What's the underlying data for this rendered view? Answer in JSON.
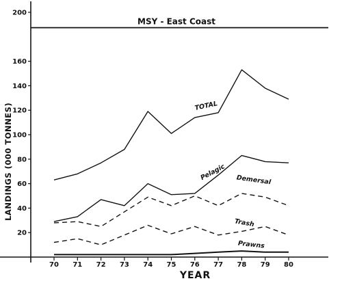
{
  "chart_data": {
    "type": "line",
    "title": "",
    "xlabel": "YEAR",
    "ylabel": "LANDINGS (000 TONNES)",
    "x": [
      70,
      71,
      72,
      73,
      74,
      75,
      76,
      77,
      78,
      79,
      80
    ],
    "xlim": [
      67,
      82.5
    ],
    "ylim": [
      -2,
      210
    ],
    "yticks": [
      20,
      40,
      60,
      80,
      100,
      120,
      140,
      160,
      200
    ],
    "grid": false,
    "reference_line": {
      "label": "MSY - East Coast",
      "value": 188
    },
    "series": [
      {
        "name": "TOTAL",
        "style": "solid",
        "values": [
          63,
          68,
          77,
          88,
          119,
          101,
          114,
          118,
          153,
          138,
          129
        ]
      },
      {
        "name": "Pelagic",
        "style": "solid",
        "values": [
          29,
          33,
          47,
          42,
          60,
          51,
          52,
          67,
          83,
          78,
          77
        ]
      },
      {
        "name": "Demersal",
        "style": "dashed",
        "values": [
          28,
          29,
          25,
          37,
          49,
          42,
          50,
          42,
          52,
          49,
          42
        ]
      },
      {
        "name": "Trash",
        "style": "dashed",
        "values": [
          12,
          15,
          10,
          18,
          26,
          19,
          25,
          18,
          21,
          25,
          18
        ]
      },
      {
        "name": "Prawns",
        "style": "solid",
        "values": [
          2,
          2,
          2,
          2,
          2,
          2,
          3,
          4,
          5,
          4,
          4
        ]
      }
    ]
  }
}
